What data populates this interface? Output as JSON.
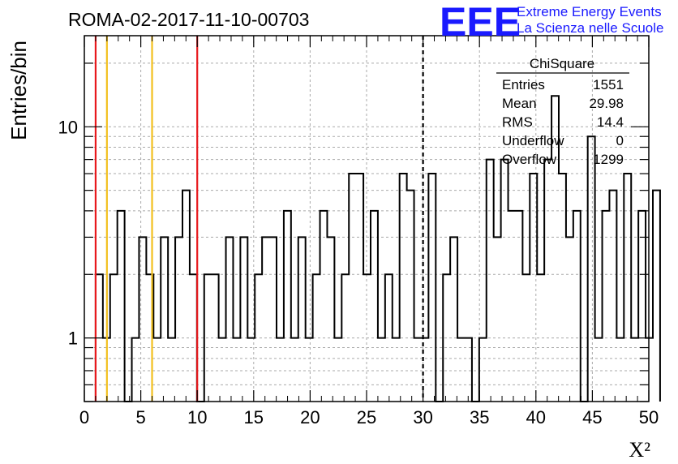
{
  "header": {
    "run_id": "ROMA-02-2017-11-10-00703",
    "logo_text": "EEE",
    "logo_line1": "Extreme Energy Events",
    "logo_line2": "La Scienza nelle Scuole"
  },
  "stats_box": {
    "title": "ChiSquare",
    "rows": [
      {
        "label": "Entries",
        "value": "1551"
      },
      {
        "label": "Mean",
        "value": "29.98"
      },
      {
        "label": "RMS",
        "value": "14.4"
      },
      {
        "label": "Underflow",
        "value": "0"
      },
      {
        "label": "Overflow",
        "value": "1299"
      }
    ]
  },
  "colors": {
    "histogram": "#000000",
    "red_lines": "#e8191d",
    "yellow_lines": "#f2c01e",
    "dashed_line": "#000000",
    "grid": "#aaaaaa",
    "logo": "#1a1aff"
  },
  "chart_data": {
    "type": "histogram",
    "xlabel": "X²",
    "ylabel": "Entries/bin",
    "xlim": [
      0,
      50
    ],
    "ylim": [
      0.5,
      27
    ],
    "y_scale": "log",
    "grid": true,
    "bin_width": 1,
    "x_ticks": [
      0,
      5,
      10,
      15,
      20,
      25,
      30,
      35,
      40,
      45,
      50
    ],
    "x_tick_labels": [
      "0",
      "5",
      "10",
      "15",
      "20",
      "25",
      "30",
      "35",
      "40",
      "45",
      "50"
    ],
    "y_ticks": [
      1,
      10
    ],
    "y_tick_labels": [
      "1",
      "10"
    ],
    "bin_edges_start": 1,
    "counts": [
      2,
      1,
      2,
      4,
      0,
      1,
      3,
      2,
      1,
      3,
      1,
      3,
      5,
      2,
      0,
      2,
      2,
      1,
      3,
      1,
      3,
      1,
      2,
      3,
      3,
      1,
      4,
      1,
      3,
      1,
      2,
      4,
      3,
      1,
      2,
      6,
      6,
      2,
      4,
      1,
      2,
      1,
      6,
      5,
      1,
      1,
      6,
      0,
      2,
      3,
      1,
      1,
      0,
      1,
      7,
      3,
      7,
      4,
      4,
      2,
      6,
      2,
      7,
      14,
      6,
      3,
      4,
      0,
      9,
      1,
      4,
      5,
      1,
      6,
      1,
      4,
      1,
      5
    ],
    "counts_x_start": 1,
    "counts_step": 0.6410256,
    "vertical_lines": [
      {
        "x": 1,
        "color": "red",
        "style": "solid"
      },
      {
        "x": 2,
        "color": "yellow",
        "style": "solid"
      },
      {
        "x": 6,
        "color": "yellow",
        "style": "solid"
      },
      {
        "x": 10,
        "color": "red",
        "style": "solid"
      },
      {
        "x": 30,
        "color": "black",
        "style": "dashed"
      }
    ]
  }
}
